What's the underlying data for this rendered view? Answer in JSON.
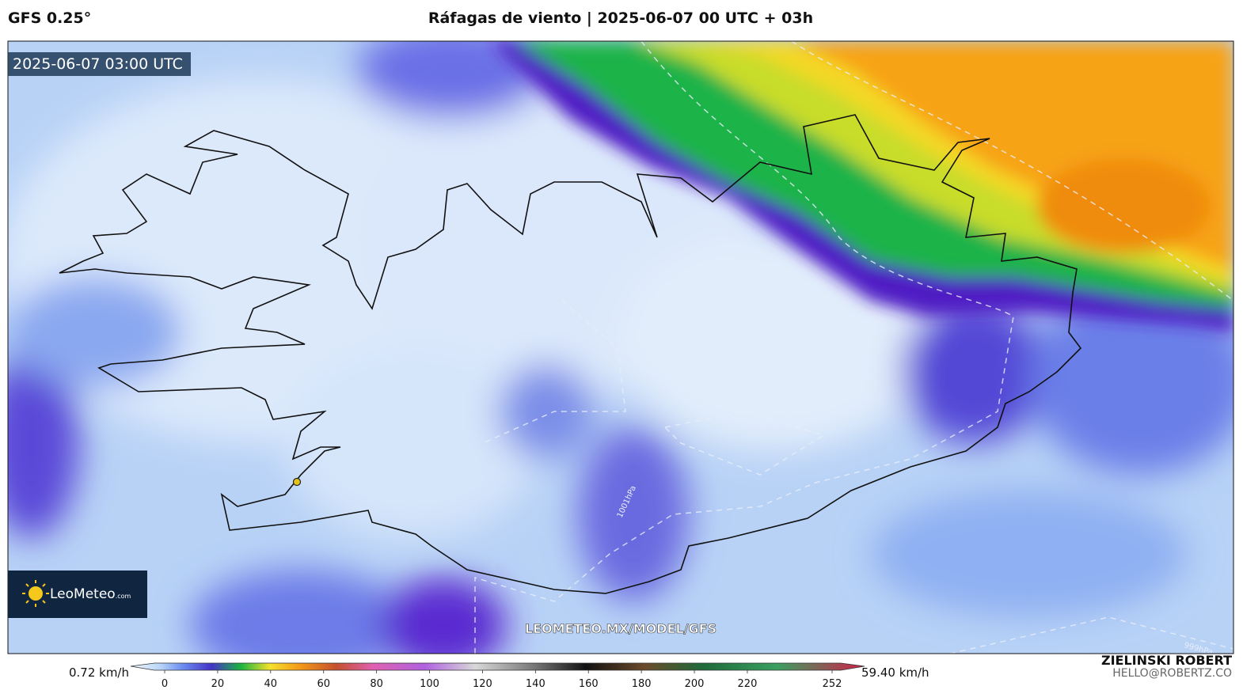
{
  "header": {
    "model": "GFS 0.25°",
    "title": "Ráfagas de viento | 2025-06-07 00 UTC + 03h"
  },
  "map": {
    "timestamp": "2025-06-07 03:00 UTC",
    "logo": {
      "name": "LeoMeteo",
      "suffix": ".com"
    },
    "watermark": "LEOMETEO.MX/MODEL/GFS",
    "isobar_labels": [
      "1001hPa",
      "999hPa"
    ]
  },
  "colorbar": {
    "min_label": "0.72 km/h",
    "max_label": "59.40 km/h",
    "ticks": [
      0,
      20,
      40,
      60,
      80,
      100,
      120,
      140,
      160,
      180,
      200,
      220,
      252
    ]
  },
  "credits": {
    "author": "ZIELINSKI ROBERT",
    "email": "HELLO@ROBERTZ.CO"
  }
}
